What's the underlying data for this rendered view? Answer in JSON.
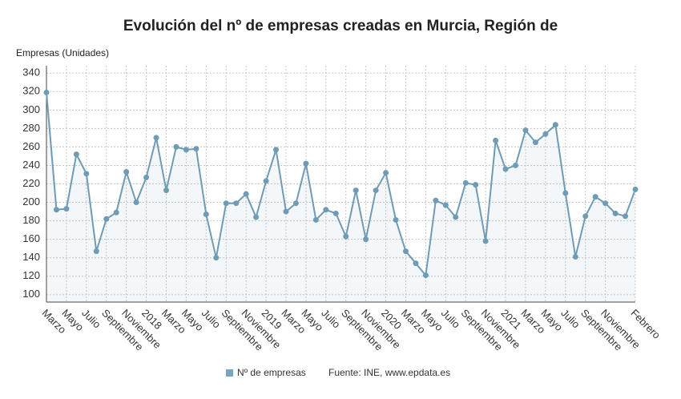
{
  "chart_data": {
    "type": "line",
    "title": "Evolución del nº de empresas creadas en Murcia, Región de",
    "y_axis_label": "Empresas (Unidades)",
    "source": "Fuente: INE, www.epdata.es",
    "categories": [
      "Marzo",
      null,
      "Mayo",
      null,
      "Julio",
      null,
      "Septiembre",
      null,
      "Noviembre",
      null,
      "2018",
      null,
      "Marzo",
      null,
      "Mayo",
      null,
      "Julio",
      null,
      "Septiembre",
      null,
      "Noviembre",
      null,
      "2019",
      null,
      "Marzo",
      null,
      "Mayo",
      null,
      "Julio",
      null,
      "Septiembre",
      null,
      "Noviembre",
      null,
      "2020",
      null,
      "Marzo",
      null,
      "Mayo",
      null,
      "Julio",
      null,
      "Septiembre",
      null,
      "Noviembre",
      null,
      "2021",
      null,
      "Marzo",
      null,
      "Mayo",
      null,
      "Julio",
      null,
      "Septiembre",
      null,
      "Noviembre",
      null,
      null,
      "Febrero"
    ],
    "series": [
      {
        "name": "Nº de empresas",
        "color": "#6f9bb5",
        "values": [
          319,
          192,
          193,
          252,
          231,
          147,
          182,
          189,
          233,
          200,
          227,
          270,
          213,
          260,
          257,
          258,
          187,
          140,
          199,
          199,
          209,
          184,
          223,
          257,
          190,
          199,
          242,
          181,
          192,
          188,
          163,
          213,
          160,
          213,
          232,
          181,
          147,
          134,
          121,
          202,
          197,
          184,
          221,
          219,
          158,
          267,
          236,
          240,
          278,
          265,
          274,
          284,
          210,
          141,
          185,
          206,
          199,
          188,
          185,
          214
        ]
      }
    ],
    "ylim": [
      92,
      348
    ],
    "yticks": [
      100,
      120,
      140,
      160,
      180,
      200,
      220,
      240,
      260,
      280,
      300,
      320,
      340
    ],
    "grid": true
  }
}
